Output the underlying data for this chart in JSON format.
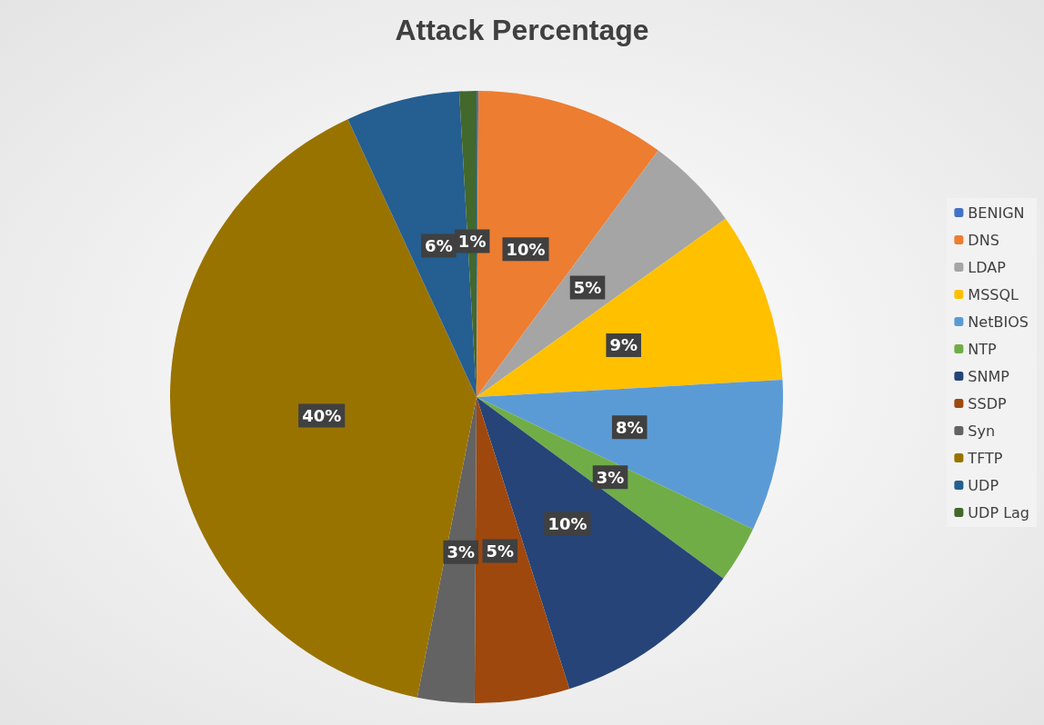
{
  "chart_data": {
    "type": "pie",
    "title": "Attack Percentage",
    "categories": [
      "BENIGN",
      "DNS",
      "LDAP",
      "MSSQL",
      "NetBIOS",
      "NTP",
      "SNMP",
      "SSDP",
      "Syn",
      "TFTP",
      "UDP",
      "UDP Lag"
    ],
    "values": [
      0.1,
      10,
      5,
      9,
      8,
      3,
      10,
      5,
      3,
      40,
      6,
      0.9
    ],
    "value_labels": [
      null,
      "10%",
      "5%",
      "9%",
      "8%",
      "3%",
      "10%",
      "5%",
      "3%",
      "40%",
      "6%",
      "1%"
    ],
    "colors": [
      "#4472c4",
      "#ed7d31",
      "#a5a5a5",
      "#ffc000",
      "#5b9bd5",
      "#70ad47",
      "#264478",
      "#9e480e",
      "#636363",
      "#997300",
      "#255e91",
      "#43682b"
    ],
    "legend": "right"
  }
}
